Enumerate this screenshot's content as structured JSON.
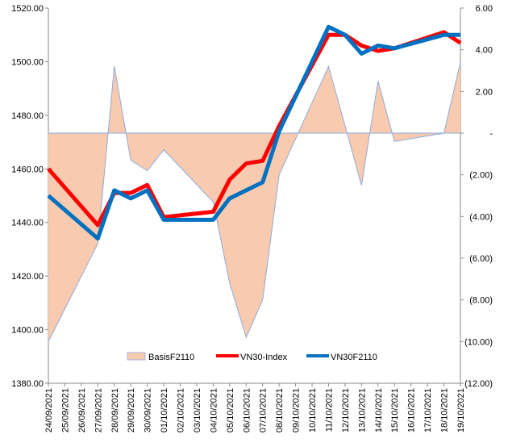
{
  "chart_data": {
    "type": "combo",
    "categories": [
      "24/09/2021",
      "25/09/2021",
      "26/09/2021",
      "27/09/2021",
      "28/09/2021",
      "29/09/2021",
      "30/09/2021",
      "01/10/2021",
      "02/10/2021",
      "03/10/2021",
      "04/10/2021",
      "05/10/2021",
      "06/10/2021",
      "07/10/2021",
      "08/10/2021",
      "09/10/2021",
      "10/10/2021",
      "11/10/2021",
      "12/10/2021",
      "13/10/2021",
      "14/10/2021",
      "15/10/2021",
      "16/10/2021",
      "17/10/2021",
      "18/10/2021",
      "19/10/2021"
    ],
    "y_left": {
      "min": 1380,
      "max": 1520,
      "step": 20,
      "tick_labels": [
        "1380.00",
        "1400.00",
        "1420.00",
        "1440.00",
        "1460.00",
        "1480.00",
        "1500.00",
        "1520.00"
      ]
    },
    "y_right": {
      "min": -12,
      "max": 6,
      "step": 2,
      "tick_labels": [
        "(12.00)",
        "(10.00)",
        "(8.00)",
        "(6.00)",
        "(4.00)",
        "(2.00)",
        "-",
        "2.00",
        "4.00",
        "6.00"
      ]
    },
    "series": [
      {
        "name": "BasisF2110",
        "type": "area",
        "axis": "right",
        "color": "#f8cbb0",
        "edge": "#8ea9db",
        "values": [
          -10,
          null,
          null,
          -5.3,
          3.2,
          -1.3,
          -1.8,
          -0.8,
          null,
          null,
          -3.3,
          -7.2,
          -9.8,
          -8.0,
          -2.0,
          null,
          null,
          3.2,
          null,
          -2.5,
          2.5,
          -0.4,
          null,
          null,
          0,
          3.4
        ]
      },
      {
        "name": "VN30-Index",
        "type": "line",
        "axis": "left",
        "color": "#ff0000",
        "values": [
          1460,
          null,
          null,
          1439,
          1451,
          1451,
          1454,
          1442,
          null,
          null,
          1444,
          1456,
          1462,
          1463,
          1476,
          null,
          null,
          1510,
          1510,
          1506,
          1504,
          1505,
          null,
          null,
          1511,
          1507
        ]
      },
      {
        "name": "VN30F2110",
        "type": "line",
        "axis": "left",
        "color": "#0070c0",
        "values": [
          1450,
          null,
          null,
          1434,
          1452,
          1449,
          1452,
          1441,
          null,
          null,
          1441,
          1449,
          1452,
          1455,
          1474,
          null,
          null,
          1513,
          1510,
          1503,
          1506,
          1505,
          null,
          null,
          1510,
          1510
        ]
      }
    ],
    "legend": {
      "placement": "bottom-center",
      "entries": [
        "BasisF2110",
        "VN30-Index",
        "VN30F2110"
      ]
    }
  }
}
